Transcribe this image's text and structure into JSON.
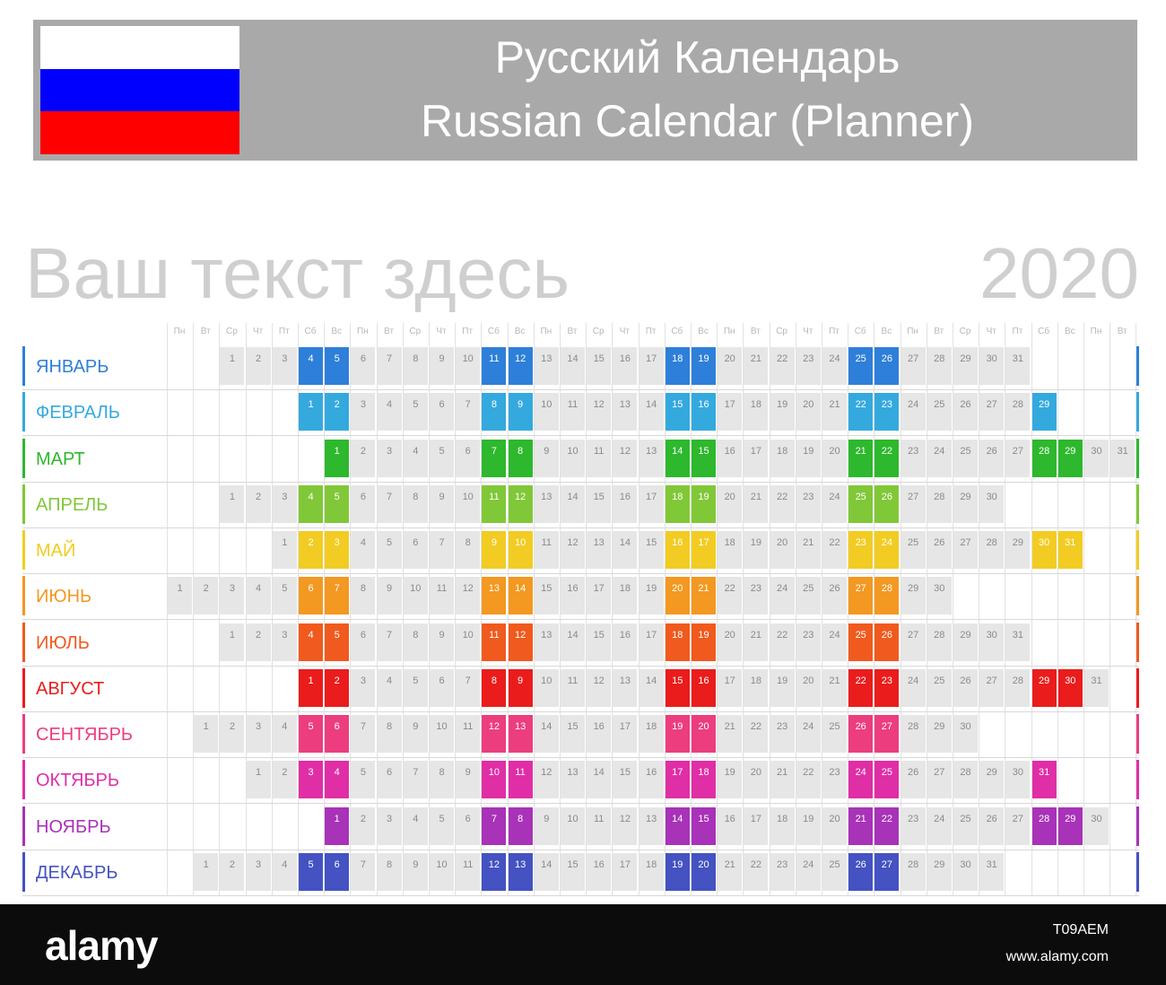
{
  "header": {
    "title_ru": "Русский Календарь",
    "title_en": "Russian Calendar (Planner)",
    "flag_colors": [
      "#ffffff",
      "#0000ff",
      "#ff0000"
    ]
  },
  "subtitle": "Ваш текст здесь",
  "year": "2020",
  "weekdays": [
    "Пн",
    "Вт",
    "Ср",
    "Чт",
    "Пт",
    "Сб",
    "Вс",
    "Пн",
    "Вт",
    "Ср",
    "Чт",
    "Пт",
    "Сб",
    "Вс",
    "Пн",
    "Вт",
    "Ср",
    "Чт",
    "Пт",
    "Сб",
    "Вс",
    "Пн",
    "Вт",
    "Ср",
    "Чт",
    "Пт",
    "Сб",
    "Вс",
    "Пн",
    "Вт",
    "Ср",
    "Чт",
    "Пт",
    "Сб",
    "Вс",
    "Пн",
    "Вт"
  ],
  "months": [
    {
      "name": "ЯНВАРЬ",
      "color": "#2e7fd9",
      "start": 2,
      "days": 31
    },
    {
      "name": "ФЕВРАЛЬ",
      "color": "#34a9de",
      "start": 5,
      "days": 29
    },
    {
      "name": "МАРТ",
      "color": "#2db82d",
      "start": 6,
      "days": 31
    },
    {
      "name": "АПРЕЛЬ",
      "color": "#80c837",
      "start": 2,
      "days": 30
    },
    {
      "name": "МАЙ",
      "color": "#f2cc22",
      "start": 4,
      "days": 31
    },
    {
      "name": "ИЮНЬ",
      "color": "#f39821",
      "start": 0,
      "days": 30
    },
    {
      "name": "ИЮЛЬ",
      "color": "#f05a1e",
      "start": 2,
      "days": 31
    },
    {
      "name": "АВГУСТ",
      "color": "#ea1c1c",
      "start": 5,
      "days": 31
    },
    {
      "name": "СЕНТЯБРЬ",
      "color": "#ec3d7e",
      "start": 1,
      "days": 30
    },
    {
      "name": "ОКТЯБРЬ",
      "color": "#e02ea6",
      "start": 3,
      "days": 31
    },
    {
      "name": "НОЯБРЬ",
      "color": "#a832b8",
      "start": 6,
      "days": 30
    },
    {
      "name": "ДЕКАБРЬ",
      "color": "#4452c2",
      "start": 1,
      "days": 31
    }
  ],
  "footer": {
    "brand": "alamy",
    "image_id": "T09AEM",
    "site": "www.alamy.com"
  }
}
